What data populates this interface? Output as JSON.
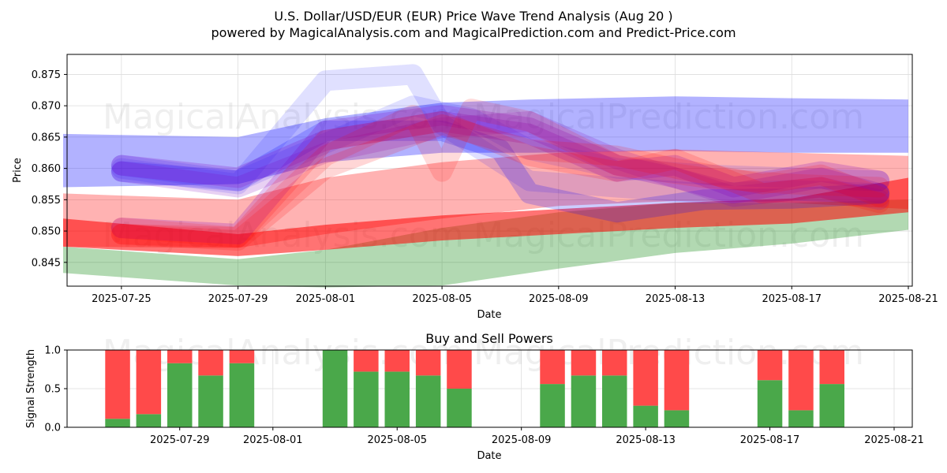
{
  "header": {
    "title": "U.S. Dollar/USD/EUR (EUR) Price Wave Trend Analysis (Aug 20 )",
    "subtitle": "powered by MagicalAnalysis.com and MagicalPrediction.com and Predict-Price.com"
  },
  "watermarks": [
    "MagicalAnalysis.com",
    "MagicalPrediction.com"
  ],
  "colors": {
    "blue": "#0000ff",
    "red": "#ff0000",
    "green": "#008000",
    "purple": "#7f00bf",
    "buy": "#4aa84a",
    "sell": "#ff4a4a"
  },
  "chart_data": [
    {
      "type": "area",
      "title": "",
      "xlabel": "Date",
      "ylabel": "Price",
      "x_range": [
        "2025-07-23",
        "2025-08-21"
      ],
      "ylim": [
        0.8412,
        0.8782
      ],
      "x_ticks": [
        "2025-07-25",
        "2025-07-29",
        "2025-08-01",
        "2025-08-05",
        "2025-08-09",
        "2025-08-13",
        "2025-08-17",
        "2025-08-21"
      ],
      "y_ticks": [
        0.845,
        0.85,
        0.855,
        0.86,
        0.865,
        0.87,
        0.875
      ],
      "y_tick_labels": [
        "0.845",
        "0.850",
        "0.855",
        "0.860",
        "0.865",
        "0.870",
        "0.875"
      ],
      "bands": [
        {
          "color": "blue",
          "opacity": 0.3,
          "x": [
            "2025-07-23",
            "2025-07-29",
            "2025-08-01",
            "2025-08-05",
            "2025-08-08",
            "2025-08-13",
            "2025-08-17",
            "2025-08-21"
          ],
          "upper": [
            0.8655,
            0.865,
            0.868,
            0.8705,
            0.871,
            0.8715,
            0.8712,
            0.871
          ],
          "lower": [
            0.857,
            0.8575,
            0.861,
            0.8625,
            0.8625,
            0.8628,
            0.8625,
            0.8625
          ]
        },
        {
          "color": "green",
          "opacity": 0.3,
          "x": [
            "2025-07-23",
            "2025-07-29",
            "2025-08-01",
            "2025-08-05",
            "2025-08-09",
            "2025-08-13",
            "2025-08-17",
            "2025-08-21"
          ],
          "upper": [
            0.8475,
            0.8455,
            0.847,
            0.8505,
            0.853,
            0.8545,
            0.8545,
            0.855
          ],
          "lower": [
            0.8433,
            0.8413,
            0.841,
            0.8413,
            0.844,
            0.8465,
            0.848,
            0.8502
          ]
        },
        {
          "color": "red",
          "opacity": 0.3,
          "x": [
            "2025-07-23",
            "2025-07-29",
            "2025-08-01",
            "2025-08-05",
            "2025-08-09",
            "2025-08-13",
            "2025-08-17",
            "2025-08-21"
          ],
          "upper": [
            0.856,
            0.855,
            0.8585,
            0.861,
            0.8625,
            0.863,
            0.8625,
            0.862
          ],
          "lower": [
            0.8475,
            0.8473,
            0.8495,
            0.852,
            0.854,
            0.8548,
            0.8545,
            0.8535
          ]
        },
        {
          "color": "red",
          "opacity": 0.55,
          "x": [
            "2025-07-23",
            "2025-07-29",
            "2025-08-01",
            "2025-08-05",
            "2025-08-09",
            "2025-08-13",
            "2025-08-17",
            "2025-08-21"
          ],
          "upper": [
            0.852,
            0.8495,
            0.851,
            0.8525,
            0.8535,
            0.8545,
            0.8552,
            0.8585
          ],
          "lower": [
            0.8475,
            0.846,
            0.847,
            0.8485,
            0.8495,
            0.8505,
            0.8512,
            0.853
          ]
        }
      ],
      "waves": [
        {
          "color": "blue",
          "opacity": 0.12,
          "x": [
            "2025-07-25",
            "2025-07-29",
            "2025-08-01",
            "2025-08-04",
            "2025-08-05",
            "2025-08-08",
            "2025-08-11",
            "2025-08-14",
            "2025-08-17",
            "2025-08-20"
          ],
          "y": [
            0.86,
            0.8575,
            0.874,
            0.875,
            0.867,
            0.858,
            0.857,
            0.856,
            0.8565,
            0.856
          ]
        },
        {
          "color": "blue",
          "opacity": 0.12,
          "x": [
            "2025-07-25",
            "2025-07-29",
            "2025-08-01",
            "2025-08-04",
            "2025-08-06",
            "2025-08-08",
            "2025-08-11",
            "2025-08-14",
            "2025-08-17",
            "2025-08-20"
          ],
          "y": [
            0.8605,
            0.858,
            0.864,
            0.87,
            0.868,
            0.863,
            0.86,
            0.859,
            0.8585,
            0.858
          ]
        },
        {
          "color": "blue",
          "opacity": 0.2,
          "x": [
            "2025-07-25",
            "2025-07-29",
            "2025-08-01",
            "2025-08-05",
            "2025-08-07",
            "2025-08-08",
            "2025-08-11",
            "2025-08-14",
            "2025-08-17",
            "2025-08-20"
          ],
          "y": [
            0.8595,
            0.858,
            0.866,
            0.866,
            0.863,
            0.856,
            0.853,
            0.855,
            0.8552,
            0.856
          ]
        },
        {
          "color": "purple",
          "opacity": 0.22,
          "x": [
            "2025-07-25",
            "2025-07-29",
            "2025-08-01",
            "2025-08-05",
            "2025-08-08",
            "2025-08-11",
            "2025-08-13",
            "2025-08-15",
            "2025-08-18",
            "2025-08-20"
          ],
          "y": [
            0.8505,
            0.8495,
            0.866,
            0.8685,
            0.8665,
            0.8605,
            0.8585,
            0.856,
            0.8585,
            0.856
          ]
        },
        {
          "color": "purple",
          "opacity": 0.22,
          "x": [
            "2025-07-25",
            "2025-07-29",
            "2025-08-01",
            "2025-08-05",
            "2025-08-08",
            "2025-08-11",
            "2025-08-13",
            "2025-08-15",
            "2025-08-18",
            "2025-08-20"
          ],
          "y": [
            0.8605,
            0.8585,
            0.8645,
            0.8675,
            0.8655,
            0.8595,
            0.8605,
            0.857,
            0.8595,
            0.858
          ]
        },
        {
          "color": "purple",
          "opacity": 0.18,
          "x": [
            "2025-07-25",
            "2025-07-29",
            "2025-08-01",
            "2025-08-05",
            "2025-08-08",
            "2025-08-11",
            "2025-08-13",
            "2025-08-15",
            "2025-08-18",
            "2025-08-20"
          ],
          "y": [
            0.8595,
            0.857,
            0.8625,
            0.8665,
            0.8675,
            0.8615,
            0.8585,
            0.8555,
            0.857,
            0.855
          ]
        },
        {
          "color": "red",
          "opacity": 0.14,
          "x": [
            "2025-07-25",
            "2025-07-29",
            "2025-08-01",
            "2025-08-04",
            "2025-08-05",
            "2025-08-06",
            "2025-08-08",
            "2025-08-11",
            "2025-08-14",
            "2025-08-17",
            "2025-08-20"
          ],
          "y": [
            0.8505,
            0.849,
            0.862,
            0.8685,
            0.8595,
            0.8695,
            0.8675,
            0.8605,
            0.8585,
            0.8575,
            0.857
          ]
        },
        {
          "color": "red",
          "opacity": 0.16,
          "x": [
            "2025-07-25",
            "2025-07-29",
            "2025-08-01",
            "2025-08-05",
            "2025-08-08",
            "2025-08-11",
            "2025-08-13",
            "2025-08-16",
            "2025-08-18",
            "2025-08-20"
          ],
          "y": [
            0.8495,
            0.8485,
            0.86,
            0.867,
            0.863,
            0.862,
            0.86,
            0.8575,
            0.859,
            0.8555
          ]
        },
        {
          "color": "red",
          "opacity": 0.16,
          "x": [
            "2025-07-25",
            "2025-07-29",
            "2025-08-01",
            "2025-08-05",
            "2025-08-08",
            "2025-08-11",
            "2025-08-13",
            "2025-08-16",
            "2025-08-18",
            "2025-08-20"
          ],
          "y": [
            0.8495,
            0.849,
            0.8645,
            0.8675,
            0.862,
            0.8595,
            0.8615,
            0.856,
            0.857,
            0.8545
          ]
        }
      ]
    },
    {
      "type": "bar",
      "title": "Buy and Sell Powers",
      "xlabel": "Date",
      "ylabel": "Signal Strength",
      "x_range": [
        "2025-07-25",
        "2025-08-21"
      ],
      "ylim": [
        0,
        1
      ],
      "x_ticks": [
        "2025-07-29",
        "2025-08-01",
        "2025-08-05",
        "2025-08-09",
        "2025-08-13",
        "2025-08-17",
        "2025-08-21"
      ],
      "y_ticks": [
        0,
        0.5,
        1
      ],
      "y_tick_labels": [
        "0.0",
        "0.5",
        "1.0"
      ],
      "dates": [
        "2025-07-27",
        "2025-07-28",
        "2025-07-29",
        "2025-07-30",
        "2025-07-31",
        "2025-08-03",
        "2025-08-04",
        "2025-08-05",
        "2025-08-06",
        "2025-08-07",
        "2025-08-10",
        "2025-08-11",
        "2025-08-12",
        "2025-08-13",
        "2025-08-14",
        "2025-08-17",
        "2025-08-18",
        "2025-08-19"
      ],
      "series": [
        {
          "name": "Buy",
          "color": "buy",
          "values": [
            0.11,
            0.17,
            0.83,
            0.67,
            0.83,
            1.0,
            0.72,
            0.72,
            0.67,
            0.5,
            0.56,
            0.67,
            0.67,
            0.28,
            0.22,
            0.61,
            0.22,
            0.56
          ]
        },
        {
          "name": "Sell",
          "color": "sell",
          "values": [
            0.89,
            0.83,
            0.17,
            0.33,
            0.17,
            0.0,
            0.28,
            0.28,
            0.33,
            0.5,
            0.44,
            0.33,
            0.33,
            0.72,
            0.78,
            0.39,
            0.78,
            0.44
          ]
        }
      ]
    }
  ]
}
